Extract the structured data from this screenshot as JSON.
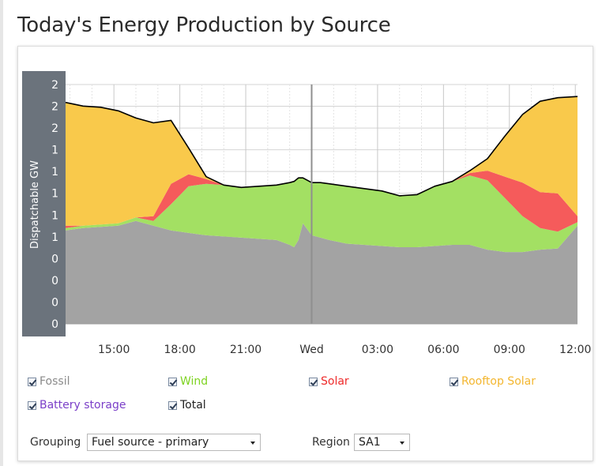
{
  "page": {
    "title": "Today's Energy Production by Source"
  },
  "colors": {
    "fossil": "#a3a3a3",
    "wind": "#a3e063",
    "solar": "#f55b5b",
    "rooftop": "#f9c94b",
    "battery": "#7b3fc8",
    "total": "#000000",
    "axis_panel": "#6b737c"
  },
  "chart_data": {
    "type": "area",
    "ylabel": "Dispatchable GW",
    "y_tick_labels": [
      "0",
      "0",
      "0",
      "0",
      "1",
      "1",
      "1",
      "1",
      "1",
      "2",
      "2",
      "2"
    ],
    "x_tick_labels": [
      "15:00",
      "18:00",
      "21:00",
      "Wed",
      "03:00",
      "06:00",
      "09:00",
      "12:00"
    ],
    "x_range_hours": [
      12.8,
      36.1
    ],
    "y_range_gw": [
      0,
      2.0
    ],
    "grid": true,
    "series": [
      {
        "name": "Fossil",
        "stack": true,
        "x": [
          12.8,
          13.6,
          14.4,
          15.2,
          16.0,
          16.8,
          17.6,
          18.4,
          19.2,
          20.0,
          20.8,
          21.6,
          22.4,
          23.0,
          23.2,
          23.4,
          23.6,
          24.0,
          24.4,
          24.8,
          25.6,
          26.4,
          27.2,
          28.0,
          28.8,
          29.6,
          30.4,
          31.2,
          32.0,
          32.8,
          33.6,
          34.4,
          35.2,
          36.1
        ],
        "values": [
          0.78,
          0.8,
          0.81,
          0.82,
          0.86,
          0.82,
          0.78,
          0.76,
          0.74,
          0.73,
          0.72,
          0.71,
          0.7,
          0.66,
          0.64,
          0.7,
          0.84,
          0.74,
          0.72,
          0.7,
          0.67,
          0.66,
          0.65,
          0.64,
          0.64,
          0.65,
          0.66,
          0.66,
          0.62,
          0.6,
          0.6,
          0.62,
          0.63,
          0.82
        ]
      },
      {
        "name": "Wind",
        "stack": true,
        "x": [
          12.8,
          13.6,
          14.4,
          15.2,
          16.0,
          16.8,
          17.6,
          18.4,
          19.2,
          20.0,
          20.8,
          21.6,
          22.4,
          23.0,
          23.2,
          23.4,
          23.6,
          24.0,
          24.4,
          24.8,
          25.6,
          26.4,
          27.2,
          28.0,
          28.8,
          29.6,
          30.4,
          31.2,
          32.0,
          32.8,
          33.6,
          34.4,
          35.2,
          36.1
        ],
        "values": [
          0.02,
          0.02,
          0.02,
          0.02,
          0.03,
          0.04,
          0.22,
          0.39,
          0.43,
          0.43,
          0.42,
          0.44,
          0.46,
          0.52,
          0.55,
          0.52,
          0.38,
          0.44,
          0.46,
          0.47,
          0.48,
          0.47,
          0.46,
          0.43,
          0.44,
          0.5,
          0.53,
          0.58,
          0.58,
          0.45,
          0.3,
          0.18,
          0.14,
          0.03
        ]
      },
      {
        "name": "Solar",
        "stack": true,
        "x": [
          12.8,
          13.6,
          14.4,
          15.2,
          16.0,
          16.8,
          17.6,
          18.4,
          19.2,
          20.0,
          20.8,
          21.6,
          22.4,
          23.0,
          23.2,
          23.4,
          23.6,
          24.0,
          24.4,
          24.8,
          25.6,
          26.4,
          27.2,
          28.0,
          28.8,
          29.6,
          30.4,
          31.2,
          32.0,
          32.8,
          33.6,
          34.4,
          35.2,
          36.1
        ],
        "values": [
          0.02,
          0.0,
          0.0,
          0.0,
          0.0,
          0.04,
          0.17,
          0.1,
          0.04,
          0.0,
          0.0,
          0.0,
          0.0,
          0.0,
          0.0,
          0.0,
          0.0,
          0.0,
          0.0,
          0.0,
          0.0,
          0.0,
          0.0,
          0.0,
          0.0,
          0.0,
          0.0,
          0.02,
          0.08,
          0.18,
          0.28,
          0.3,
          0.32,
          0.05
        ]
      },
      {
        "name": "Rooftop Solar",
        "stack": true,
        "x": [
          12.8,
          13.6,
          14.4,
          15.2,
          16.0,
          16.8,
          17.6,
          18.4,
          19.2,
          20.0,
          20.8,
          21.6,
          22.4,
          23.0,
          23.2,
          23.4,
          23.6,
          24.0,
          24.4,
          24.8,
          25.6,
          26.4,
          27.2,
          28.0,
          28.8,
          29.6,
          30.4,
          31.2,
          32.0,
          32.8,
          33.6,
          34.4,
          35.2,
          36.1
        ],
        "values": [
          1.03,
          1.0,
          0.98,
          0.94,
          0.83,
          0.78,
          0.53,
          0.22,
          0.02,
          0.0,
          0.0,
          0.0,
          0.0,
          0.0,
          0.0,
          0.0,
          0.0,
          0.0,
          0.0,
          0.0,
          0.0,
          0.0,
          0.0,
          0.0,
          0.0,
          0.0,
          0.0,
          0.02,
          0.1,
          0.34,
          0.57,
          0.76,
          0.8,
          1.0
        ]
      },
      {
        "name": "Battery storage",
        "stack": true,
        "x": [
          12.8,
          36.1
        ],
        "values": [
          0,
          0
        ]
      },
      {
        "name": "Total",
        "line": true,
        "x": [
          12.8,
          13.6,
          14.4,
          15.2,
          16.0,
          16.8,
          17.6,
          18.4,
          19.2,
          20.0,
          20.8,
          21.6,
          22.4,
          23.0,
          23.2,
          23.4,
          23.6,
          24.0,
          24.4,
          24.8,
          25.6,
          26.4,
          27.2,
          28.0,
          28.8,
          29.6,
          30.4,
          31.2,
          32.0,
          32.8,
          33.6,
          34.4,
          35.2,
          36.1
        ],
        "values": [
          1.85,
          1.82,
          1.81,
          1.78,
          1.72,
          1.68,
          1.7,
          1.47,
          1.23,
          1.16,
          1.14,
          1.15,
          1.16,
          1.18,
          1.19,
          1.22,
          1.22,
          1.18,
          1.18,
          1.17,
          1.15,
          1.13,
          1.11,
          1.07,
          1.08,
          1.15,
          1.19,
          1.28,
          1.38,
          1.57,
          1.75,
          1.86,
          1.89,
          1.9
        ]
      }
    ]
  },
  "legend": {
    "fossil": "Fossil",
    "wind": "Wind",
    "solar": "Solar",
    "rooftop": "Rooftop Solar",
    "battery": "Battery storage",
    "total": "Total"
  },
  "controls": {
    "grouping_label": "Grouping",
    "grouping_value": "Fuel source - primary",
    "region_label": "Region",
    "region_value": "SA1"
  }
}
